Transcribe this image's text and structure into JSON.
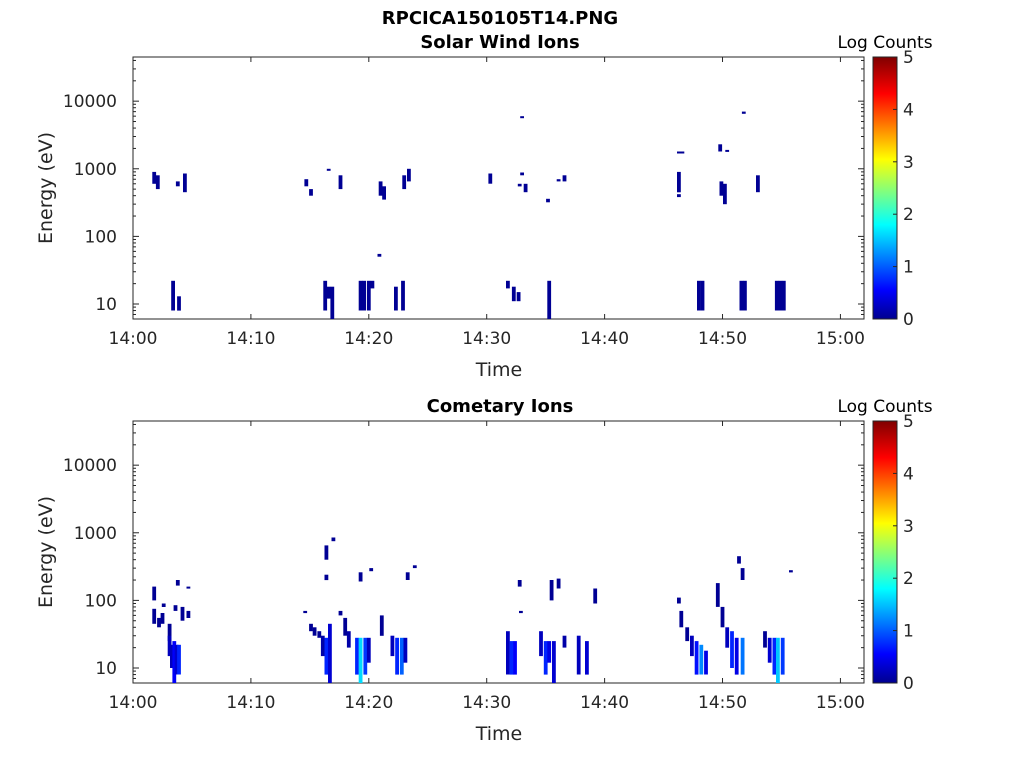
{
  "figure": {
    "suptitle": "RPCICA150105T14.PNG"
  },
  "chart_data": [
    {
      "type": "heatmap",
      "title": "Solar Wind Ions",
      "xlabel": "Time",
      "ylabel": "Energy (eV)",
      "x_ticks": [
        "14:00",
        "14:10",
        "14:20",
        "14:30",
        "14:40",
        "14:50",
        "15:00"
      ],
      "x_range_min": [
        0,
        62
      ],
      "y_scale": "log",
      "y_range": [
        6,
        45000
      ],
      "y_ticks": [
        "10",
        "100",
        "1000",
        "10000"
      ],
      "y_tick_values": [
        10,
        100,
        1000,
        10000
      ],
      "colorbar": {
        "label": "Log Counts",
        "ticks": [
          "0",
          "1",
          "2",
          "3",
          "4",
          "5"
        ],
        "range": [
          0,
          5
        ],
        "colormap": "jet"
      },
      "cells": [
        [
          1.8,
          600,
          900,
          0.1
        ],
        [
          2.1,
          500,
          800,
          0.1
        ],
        [
          3.8,
          550,
          650,
          0.1
        ],
        [
          4.4,
          450,
          850,
          0.1
        ],
        [
          14.7,
          550,
          700,
          0.1
        ],
        [
          15.1,
          400,
          500,
          0.1
        ],
        [
          16.6,
          950,
          1000,
          0.1
        ],
        [
          17.6,
          500,
          800,
          0.1
        ],
        [
          21.0,
          400,
          650,
          0.1
        ],
        [
          21.3,
          350,
          550,
          0.1
        ],
        [
          23.0,
          500,
          800,
          0.1
        ],
        [
          23.4,
          650,
          1000,
          0.1
        ],
        [
          30.3,
          600,
          850,
          0.1
        ],
        [
          33.0,
          5600,
          6000,
          0.1
        ],
        [
          32.8,
          550,
          600,
          0.1
        ],
        [
          33.3,
          450,
          600,
          0.1
        ],
        [
          33.0,
          800,
          880,
          0.1
        ],
        [
          35.2,
          320,
          360,
          0.1
        ],
        [
          36.1,
          650,
          700,
          0.1
        ],
        [
          36.6,
          650,
          800,
          0.1
        ],
        [
          46.3,
          1700,
          1800,
          0.1
        ],
        [
          46.6,
          1700,
          1800,
          0.1
        ],
        [
          46.3,
          450,
          900,
          0.1
        ],
        [
          46.3,
          380,
          420,
          0.1
        ],
        [
          49.8,
          1800,
          2300,
          0.1
        ],
        [
          50.4,
          1800,
          1900,
          0.1
        ],
        [
          49.9,
          400,
          650,
          0.1
        ],
        [
          50.2,
          300,
          600,
          0.1
        ],
        [
          51.8,
          6500,
          7000,
          0.1
        ],
        [
          53.0,
          450,
          800,
          0.1
        ],
        [
          20.9,
          50,
          55,
          0.1
        ],
        [
          3.4,
          8,
          22,
          0.1
        ],
        [
          3.9,
          8,
          13,
          0.1
        ],
        [
          16.3,
          8,
          22,
          0.1
        ],
        [
          16.6,
          12,
          18,
          0.1
        ],
        [
          16.9,
          6,
          18,
          0.1
        ],
        [
          19.3,
          8,
          22,
          0.1
        ],
        [
          19.6,
          8,
          22,
          0.1
        ],
        [
          20.0,
          8,
          22,
          0.1
        ],
        [
          20.3,
          17,
          22,
          0.1
        ],
        [
          22.3,
          8,
          18,
          0.1
        ],
        [
          22.9,
          8,
          22,
          0.1
        ],
        [
          31.8,
          17,
          22,
          0.1
        ],
        [
          32.3,
          11,
          18,
          0.1
        ],
        [
          32.7,
          11,
          15,
          0.1
        ],
        [
          35.3,
          6,
          22,
          0.1
        ],
        [
          48.0,
          8,
          22,
          0.1
        ],
        [
          48.3,
          8,
          22,
          0.1
        ],
        [
          51.6,
          8,
          22,
          0.1
        ],
        [
          51.9,
          8,
          22,
          0.1
        ],
        [
          54.6,
          8,
          22,
          0.1
        ],
        [
          54.9,
          8,
          22,
          0.1
        ],
        [
          55.2,
          8,
          22,
          0.1
        ]
      ]
    },
    {
      "type": "heatmap",
      "title": "Cometary Ions",
      "xlabel": "Time",
      "ylabel": "Energy (eV)",
      "x_ticks": [
        "14:00",
        "14:10",
        "14:20",
        "14:30",
        "14:40",
        "14:50",
        "15:00"
      ],
      "x_range_min": [
        0,
        62
      ],
      "y_scale": "log",
      "y_range": [
        6,
        45000
      ],
      "y_ticks": [
        "10",
        "100",
        "1000",
        "10000"
      ],
      "y_tick_values": [
        10,
        100,
        1000,
        10000
      ],
      "colorbar": {
        "label": "Log Counts",
        "ticks": [
          "0",
          "1",
          "2",
          "3",
          "4",
          "5"
        ],
        "range": [
          0,
          5
        ],
        "colormap": "jet"
      },
      "cells": [
        [
          1.8,
          100,
          160,
          0.1
        ],
        [
          1.8,
          45,
          75,
          0.1
        ],
        [
          2.2,
          40,
          55,
          0.1
        ],
        [
          2.5,
          45,
          65,
          0.1
        ],
        [
          2.6,
          80,
          90,
          0.1
        ],
        [
          3.1,
          25,
          45,
          0.1
        ],
        [
          3.1,
          15,
          30,
          0.3
        ],
        [
          3.3,
          10,
          22,
          0.3
        ],
        [
          3.5,
          6,
          25,
          0.6
        ],
        [
          3.7,
          8,
          22,
          0.4
        ],
        [
          3.9,
          8,
          22,
          0.8
        ],
        [
          3.6,
          70,
          85,
          0.1
        ],
        [
          3.8,
          165,
          200,
          0.1
        ],
        [
          4.2,
          50,
          80,
          0.1
        ],
        [
          4.7,
          55,
          70,
          0.1
        ],
        [
          4.7,
          150,
          160,
          0.1
        ],
        [
          14.6,
          65,
          70,
          0.1
        ],
        [
          15.1,
          35,
          45,
          0.1
        ],
        [
          15.4,
          30,
          40,
          0.1
        ],
        [
          15.8,
          28,
          35,
          0.1
        ],
        [
          16.1,
          15,
          30,
          0.2
        ],
        [
          16.4,
          8,
          28,
          0.8
        ],
        [
          16.7,
          6,
          45,
          0.4
        ],
        [
          16.4,
          400,
          650,
          0.1
        ],
        [
          16.4,
          200,
          240,
          0.1
        ],
        [
          17.0,
          750,
          850,
          0.1
        ],
        [
          17.6,
          60,
          70,
          0.1
        ],
        [
          18.0,
          30,
          55,
          0.1
        ],
        [
          18.3,
          20,
          35,
          0.2
        ],
        [
          19.0,
          8,
          28,
          0.8
        ],
        [
          19.3,
          6,
          28,
          1.7
        ],
        [
          19.7,
          8,
          28,
          0.9
        ],
        [
          20.0,
          12,
          28,
          0.3
        ],
        [
          19.3,
          190,
          260,
          0.1
        ],
        [
          20.2,
          270,
          300,
          0.1
        ],
        [
          21.1,
          30,
          60,
          0.1
        ],
        [
          22.0,
          15,
          30,
          0.3
        ],
        [
          22.4,
          8,
          28,
          0.8
        ],
        [
          22.8,
          8,
          28,
          1.1
        ],
        [
          23.1,
          12,
          28,
          0.3
        ],
        [
          23.3,
          200,
          260,
          0.1
        ],
        [
          23.9,
          300,
          330,
          0.1
        ],
        [
          31.8,
          8,
          35,
          0.3
        ],
        [
          32.1,
          8,
          25,
          0.8
        ],
        [
          32.4,
          8,
          25,
          0.6
        ],
        [
          32.8,
          160,
          200,
          0.1
        ],
        [
          32.9,
          65,
          70,
          0.1
        ],
        [
          34.6,
          15,
          35,
          0.3
        ],
        [
          35.0,
          8,
          25,
          0.8
        ],
        [
          35.3,
          12,
          25,
          0.5
        ],
        [
          35.7,
          6,
          25,
          0.4
        ],
        [
          35.5,
          100,
          200,
          0.1
        ],
        [
          36.1,
          150,
          210,
          0.1
        ],
        [
          36.6,
          20,
          30,
          0.2
        ],
        [
          37.8,
          8,
          30,
          0.3
        ],
        [
          38.5,
          8,
          25,
          0.4
        ],
        [
          39.2,
          90,
          150,
          0.1
        ],
        [
          46.3,
          90,
          110,
          0.1
        ],
        [
          46.5,
          40,
          70,
          0.1
        ],
        [
          47.0,
          25,
          40,
          0.1
        ],
        [
          47.4,
          15,
          30,
          0.3
        ],
        [
          47.8,
          8,
          25,
          0.7
        ],
        [
          48.2,
          8,
          22,
          1.3
        ],
        [
          48.6,
          8,
          18,
          0.5
        ],
        [
          49.6,
          80,
          180,
          0.1
        ],
        [
          50.0,
          40,
          80,
          0.1
        ],
        [
          50.4,
          20,
          40,
          0.3
        ],
        [
          50.8,
          10,
          35,
          0.8
        ],
        [
          51.2,
          8,
          28,
          0.5
        ],
        [
          51.7,
          8,
          28,
          1.2
        ],
        [
          51.4,
          350,
          450,
          0.1
        ],
        [
          51.7,
          200,
          300,
          0.1
        ],
        [
          53.6,
          20,
          35,
          0.1
        ],
        [
          54.0,
          12,
          28,
          0.4
        ],
        [
          54.4,
          8,
          28,
          0.8
        ],
        [
          54.7,
          6,
          28,
          1.6
        ],
        [
          55.1,
          8,
          28,
          0.9
        ],
        [
          55.8,
          260,
          280,
          0.1
        ]
      ]
    }
  ]
}
